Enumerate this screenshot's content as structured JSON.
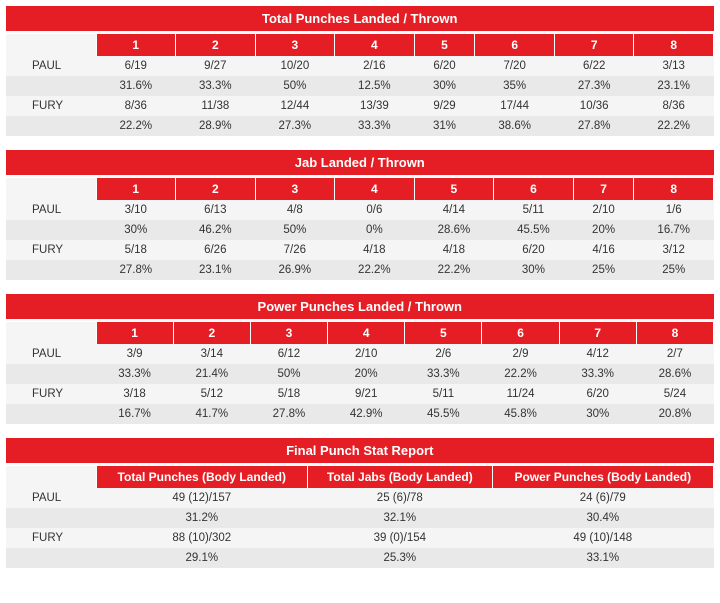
{
  "rounds": [
    "1",
    "2",
    "3",
    "4",
    "5",
    "6",
    "7",
    "8"
  ],
  "fighters": {
    "a": "PAUL",
    "b": "FURY"
  },
  "sections": [
    {
      "title": "Total Punches Landed / Thrown",
      "type": "rounds",
      "a_vals": [
        "6/19",
        "9/27",
        "10/20",
        "2/16",
        "6/20",
        "7/20",
        "6/22",
        "3/13"
      ],
      "a_pcts": [
        "31.6%",
        "33.3%",
        "50%",
        "12.5%",
        "30%",
        "35%",
        "27.3%",
        "23.1%"
      ],
      "b_vals": [
        "8/36",
        "11/38",
        "12/44",
        "13/39",
        "9/29",
        "17/44",
        "10/36",
        "8/36"
      ],
      "b_pcts": [
        "22.2%",
        "28.9%",
        "27.3%",
        "33.3%",
        "31%",
        "38.6%",
        "27.8%",
        "22.2%"
      ]
    },
    {
      "title": "Jab Landed / Thrown",
      "type": "rounds",
      "a_vals": [
        "3/10",
        "6/13",
        "4/8",
        "0/6",
        "4/14",
        "5/11",
        "2/10",
        "1/6"
      ],
      "a_pcts": [
        "30%",
        "46.2%",
        "50%",
        "0%",
        "28.6%",
        "45.5%",
        "20%",
        "16.7%"
      ],
      "b_vals": [
        "5/18",
        "6/26",
        "7/26",
        "4/18",
        "4/18",
        "6/20",
        "4/16",
        "3/12"
      ],
      "b_pcts": [
        "27.8%",
        "23.1%",
        "26.9%",
        "22.2%",
        "22.2%",
        "30%",
        "25%",
        "25%"
      ]
    },
    {
      "title": "Power Punches Landed / Thrown",
      "type": "rounds",
      "a_vals": [
        "3/9",
        "3/14",
        "6/12",
        "2/10",
        "2/6",
        "2/9",
        "4/12",
        "2/7"
      ],
      "a_pcts": [
        "33.3%",
        "21.4%",
        "50%",
        "20%",
        "33.3%",
        "22.2%",
        "33.3%",
        "28.6%"
      ],
      "b_vals": [
        "3/18",
        "5/12",
        "5/18",
        "9/21",
        "5/11",
        "11/24",
        "6/20",
        "5/24"
      ],
      "b_pcts": [
        "16.7%",
        "41.7%",
        "27.8%",
        "42.9%",
        "45.5%",
        "45.8%",
        "30%",
        "20.8%"
      ]
    },
    {
      "title": "Final Punch Stat Report",
      "type": "final",
      "headers": [
        "Total Punches (Body Landed)",
        "Total Jabs (Body Landed)",
        "Power Punches (Body Landed)"
      ],
      "a_vals": [
        "49 (12)/157",
        "25 (6)/78",
        "24 (6)/79"
      ],
      "a_pcts": [
        "31.2%",
        "32.1%",
        "30.4%"
      ],
      "b_vals": [
        "88 (10)/302",
        "39 (0)/154",
        "49 (10)/148"
      ],
      "b_pcts": [
        "29.1%",
        "25.3%",
        "33.1%"
      ]
    }
  ],
  "colors": {
    "brand": "#e51e25",
    "row_light": "#f5f5f5",
    "row_dark": "#e9e9e9",
    "text": "#333333"
  }
}
